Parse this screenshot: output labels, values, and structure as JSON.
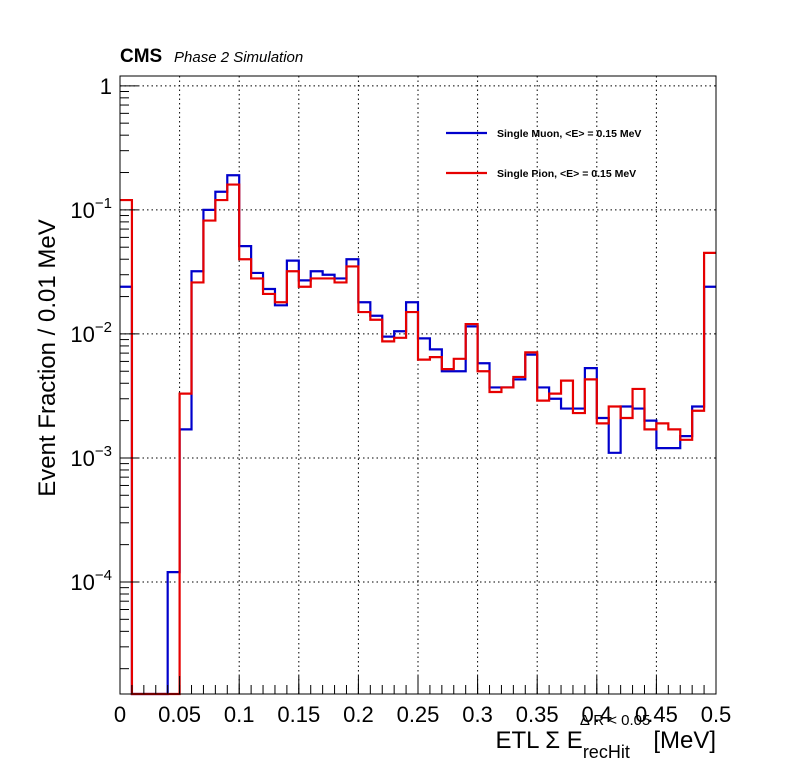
{
  "header": {
    "experiment": "CMS",
    "subtitle": "Phase 2 Simulation"
  },
  "chart_data": {
    "type": "line",
    "style": "step-histogram",
    "xlabel": "ETL Σ E",
    "xlabel_sub": "recHit",
    "xlabel_sup": "Δ R < 0.05",
    "xlabel_unit": "[MeV]",
    "ylabel": "Event Fraction / 0.01 MeV",
    "xlim": [
      0,
      0.5
    ],
    "ylim": [
      1.25e-05,
      1.2
    ],
    "yscale": "log",
    "grid": true,
    "legend_position": "top-right",
    "x_ticks": [
      {
        "value": 0,
        "label": "0"
      },
      {
        "value": 0.05,
        "label": "0.05"
      },
      {
        "value": 0.1,
        "label": "0.1"
      },
      {
        "value": 0.15,
        "label": "0.15"
      },
      {
        "value": 0.2,
        "label": "0.2"
      },
      {
        "value": 0.25,
        "label": "0.25"
      },
      {
        "value": 0.3,
        "label": "0.3"
      },
      {
        "value": 0.35,
        "label": "0.35"
      },
      {
        "value": 0.4,
        "label": "0.4"
      },
      {
        "value": 0.45,
        "label": "0.45"
      },
      {
        "value": 0.5,
        "label": "0.5"
      }
    ],
    "y_ticks": [
      {
        "value": 1,
        "base": "1",
        "exp": ""
      },
      {
        "value": 0.1,
        "base": "10",
        "exp": "−1"
      },
      {
        "value": 0.01,
        "base": "10",
        "exp": "−2"
      },
      {
        "value": 0.001,
        "base": "10",
        "exp": "−3"
      },
      {
        "value": 0.0001,
        "base": "10",
        "exp": "−4"
      }
    ],
    "bin_edges_start": 0,
    "bin_width": 0.01,
    "series": [
      {
        "name": "Single Muon, <E> = 0.15 MeV",
        "color": "#0000cc",
        "values": [
          0.024,
          1.25e-05,
          1.25e-05,
          1.25e-05,
          0.00012,
          0.0017,
          0.032,
          0.1,
          0.14,
          0.19,
          0.051,
          0.031,
          0.023,
          0.017,
          0.039,
          0.027,
          0.032,
          0.03,
          0.028,
          0.04,
          0.018,
          0.014,
          0.0095,
          0.0105,
          0.018,
          0.0092,
          0.0075,
          0.005,
          0.005,
          0.0115,
          0.0058,
          0.0037,
          0.0037,
          0.0043,
          0.0068,
          0.0037,
          0.003,
          0.0025,
          0.0025,
          0.0053,
          0.0021,
          0.0011,
          0.0026,
          0.0025,
          0.002,
          0.0012,
          0.0012,
          0.0015,
          0.0026,
          0.024
        ]
      },
      {
        "name": "Single Pion, <E> = 0.15 MeV",
        "color": "#e60000",
        "values": [
          0.12,
          1.25e-05,
          1.25e-05,
          1.25e-05,
          1.25e-05,
          0.0033,
          0.026,
          0.082,
          0.12,
          0.16,
          0.04,
          0.028,
          0.021,
          0.018,
          0.032,
          0.024,
          0.028,
          0.028,
          0.026,
          0.035,
          0.015,
          0.013,
          0.0087,
          0.0093,
          0.015,
          0.0062,
          0.0065,
          0.0052,
          0.0063,
          0.012,
          0.005,
          0.0034,
          0.0037,
          0.0045,
          0.0071,
          0.0029,
          0.0033,
          0.0042,
          0.0023,
          0.0043,
          0.0019,
          0.0026,
          0.0021,
          0.0036,
          0.0017,
          0.0019,
          0.0017,
          0.0014,
          0.0024,
          0.045
        ]
      }
    ]
  }
}
